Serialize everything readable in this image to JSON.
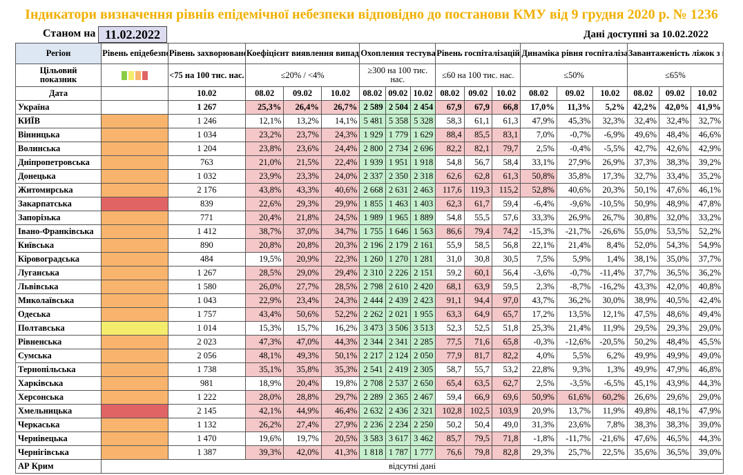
{
  "title": "Індикатори визначення рівнів епідемічної небезпеки відповідно до постанови КМУ від 9 грудня 2020 р. № 1236",
  "as_of_label": "Станом на",
  "as_of_date": "11.02.2022",
  "available": "Дані доступні за 10.02.2022",
  "colors": {
    "orange": "#f8b46c",
    "red": "#e06464",
    "yellow": "#f4ec6c",
    "pink": "#f4c7c8",
    "green": "#c6efce"
  },
  "headers": {
    "region": "Регіон",
    "level": "Рівень епідебезпеки",
    "incidence": "Рівень захворюваності",
    "detection": "Коефіцієнт виявлення випадків інфікування",
    "testing": "Охоплення тестуванням",
    "hospital": "Рівень госпіталізацій",
    "dynamics": "Динаміка рівня госпіталізацій",
    "beds": "Завантаженість ліжок з киснем"
  },
  "target": {
    "label": "Цільовий показник",
    "indicator_colors": [
      "#88cc44",
      "#f4ec6c",
      "#f8b46c",
      "#e06464"
    ],
    "incidence": "<75 на 100 тис. нас.",
    "detection": "≤20% / <4%",
    "testing": "≥300 на 100 тис. нас.",
    "hospital": "≤60 на 100 тис. нас.",
    "dynamics": "≤50%",
    "beds": "≤65%"
  },
  "date_label": "Дата",
  "dates": {
    "incidence": "10.02",
    "three": [
      "08.02",
      "09.02",
      "10.02"
    ]
  },
  "rows": [
    {
      "region": "Україна",
      "level": "none",
      "inc": "1 267",
      "det": [
        "25,3%",
        "26,4%",
        "26,7%"
      ],
      "tst": [
        "2 589",
        "2 504",
        "2 454"
      ],
      "hos": [
        "67,9",
        "67,9",
        "66,8"
      ],
      "dyn": [
        "17,0%",
        "11,3%",
        "5,2%"
      ],
      "bed": [
        "42,2%",
        "42,0%",
        "41,9%"
      ],
      "det_red": [
        1,
        1,
        1
      ],
      "hos_red": [
        1,
        1,
        1
      ],
      "dyn_red": [
        0,
        0,
        0
      ]
    },
    {
      "region": "КИЇВ",
      "level": "orange",
      "inc": "1 246",
      "det": [
        "12,1%",
        "13,2%",
        "14,1%"
      ],
      "tst": [
        "5 481",
        "5 358",
        "5 328"
      ],
      "hos": [
        "58,3",
        "61,1",
        "61,3"
      ],
      "dyn": [
        "47,9%",
        "45,3%",
        "32,3%"
      ],
      "bed": [
        "32,4%",
        "32,4%",
        "32,7%"
      ],
      "det_red": [
        0,
        0,
        0
      ],
      "hos_red": [
        0,
        0,
        0
      ],
      "dyn_red": [
        0,
        0,
        0
      ]
    },
    {
      "region": "Вінницька",
      "level": "orange",
      "inc": "1 034",
      "det": [
        "23,2%",
        "23,7%",
        "24,3%"
      ],
      "tst": [
        "1 929",
        "1 779",
        "1 629"
      ],
      "hos": [
        "88,4",
        "85,5",
        "83,1"
      ],
      "dyn": [
        "7,0%",
        "-0,7%",
        "-6,9%"
      ],
      "bed": [
        "49,6%",
        "48,4%",
        "46,6%"
      ],
      "det_red": [
        1,
        1,
        1
      ],
      "hos_red": [
        1,
        1,
        1
      ],
      "dyn_red": [
        0,
        0,
        0
      ]
    },
    {
      "region": "Волинська",
      "level": "orange",
      "inc": "1 204",
      "det": [
        "23,8%",
        "23,6%",
        "24,4%"
      ],
      "tst": [
        "2 800",
        "2 734",
        "2 696"
      ],
      "hos": [
        "82,2",
        "82,1",
        "79,7"
      ],
      "dyn": [
        "2,5%",
        "-0,4%",
        "-5,5%"
      ],
      "bed": [
        "42,7%",
        "42,6%",
        "42,9%"
      ],
      "det_red": [
        1,
        1,
        1
      ],
      "hos_red": [
        1,
        1,
        1
      ],
      "dyn_red": [
        0,
        0,
        0
      ]
    },
    {
      "region": "Дніпропетровська",
      "level": "orange",
      "inc": "763",
      "det": [
        "21,0%",
        "21,5%",
        "22,4%"
      ],
      "tst": [
        "1 939",
        "1 951",
        "1 918"
      ],
      "hos": [
        "54,8",
        "56,7",
        "58,4"
      ],
      "dyn": [
        "33,1%",
        "27,9%",
        "26,9%"
      ],
      "bed": [
        "37,3%",
        "38,3%",
        "39,2%"
      ],
      "det_red": [
        1,
        1,
        1
      ],
      "hos_red": [
        0,
        0,
        0
      ],
      "dyn_red": [
        0,
        0,
        0
      ]
    },
    {
      "region": "Донецька",
      "level": "orange",
      "inc": "1 032",
      "det": [
        "23,9%",
        "23,3%",
        "24,0%"
      ],
      "tst": [
        "2 337",
        "2 350",
        "2 318"
      ],
      "hos": [
        "62,6",
        "62,8",
        "61,3"
      ],
      "dyn": [
        "50,8%",
        "35,8%",
        "17,3%"
      ],
      "bed": [
        "32,7%",
        "33,4%",
        "35,2%"
      ],
      "det_red": [
        1,
        1,
        1
      ],
      "hos_red": [
        1,
        1,
        1
      ],
      "dyn_red": [
        1,
        0,
        0
      ]
    },
    {
      "region": "Житомирська",
      "level": "orange",
      "inc": "2 176",
      "det": [
        "43,8%",
        "43,3%",
        "40,6%"
      ],
      "tst": [
        "2 668",
        "2 631",
        "2 463"
      ],
      "hos": [
        "117,6",
        "119,3",
        "115,2"
      ],
      "dyn": [
        "52,8%",
        "40,6%",
        "20,3%"
      ],
      "bed": [
        "50,1%",
        "47,6%",
        "46,1%"
      ],
      "det_red": [
        1,
        1,
        1
      ],
      "hos_red": [
        1,
        1,
        1
      ],
      "dyn_red": [
        1,
        0,
        0
      ]
    },
    {
      "region": "Закарпатська",
      "level": "red",
      "inc": "839",
      "det": [
        "22,6%",
        "29,3%",
        "29,9%"
      ],
      "tst": [
        "1 855",
        "1 463",
        "1 403"
      ],
      "hos": [
        "62,3",
        "61,7",
        "59,4"
      ],
      "dyn": [
        "-6,4%",
        "-9,6%",
        "-10,5%"
      ],
      "bed": [
        "50,9%",
        "48,9%",
        "47,8%"
      ],
      "det_red": [
        1,
        1,
        1
      ],
      "hos_red": [
        1,
        1,
        0
      ],
      "dyn_red": [
        0,
        0,
        0
      ]
    },
    {
      "region": "Запорізька",
      "level": "orange",
      "inc": "771",
      "det": [
        "20,4%",
        "21,8%",
        "24,5%"
      ],
      "tst": [
        "1 989",
        "1 965",
        "1 889"
      ],
      "hos": [
        "54,8",
        "55,5",
        "57,6"
      ],
      "dyn": [
        "33,3%",
        "26,9%",
        "26,7%"
      ],
      "bed": [
        "30,8%",
        "32,0%",
        "33,2%"
      ],
      "det_red": [
        1,
        1,
        1
      ],
      "hos_red": [
        0,
        0,
        0
      ],
      "dyn_red": [
        0,
        0,
        0
      ]
    },
    {
      "region": "Івано-Франківська",
      "level": "orange",
      "inc": "1 412",
      "det": [
        "38,7%",
        "37,0%",
        "34,7%"
      ],
      "tst": [
        "1 755",
        "1 646",
        "1 563"
      ],
      "hos": [
        "86,6",
        "79,4",
        "74,2"
      ],
      "dyn": [
        "-15,3%",
        "-21,7%",
        "-26,6%"
      ],
      "bed": [
        "55,0%",
        "53,5%",
        "52,2%"
      ],
      "det_red": [
        1,
        1,
        1
      ],
      "hos_red": [
        1,
        1,
        1
      ],
      "dyn_red": [
        0,
        0,
        0
      ]
    },
    {
      "region": "Київська",
      "level": "orange",
      "inc": "890",
      "det": [
        "20,8%",
        "20,8%",
        "20,3%"
      ],
      "tst": [
        "2 196",
        "2 179",
        "2 161"
      ],
      "hos": [
        "55,9",
        "58,5",
        "56,8"
      ],
      "dyn": [
        "22,1%",
        "21,4%",
        "8,4%"
      ],
      "bed": [
        "52,0%",
        "54,3%",
        "54,9%"
      ],
      "det_red": [
        1,
        1,
        1
      ],
      "hos_red": [
        0,
        0,
        0
      ],
      "dyn_red": [
        0,
        0,
        0
      ]
    },
    {
      "region": "Кіровоградська",
      "level": "orange",
      "inc": "484",
      "det": [
        "19,5%",
        "20,9%",
        "22,3%"
      ],
      "tst": [
        "1 260",
        "1 270",
        "1 281"
      ],
      "hos": [
        "31,0",
        "30,8",
        "30,5"
      ],
      "dyn": [
        "7,5%",
        "5,9%",
        "1,4%"
      ],
      "bed": [
        "38,1%",
        "35,0%",
        "37,7%"
      ],
      "det_red": [
        0,
        1,
        1
      ],
      "hos_red": [
        0,
        0,
        0
      ],
      "dyn_red": [
        0,
        0,
        0
      ]
    },
    {
      "region": "Луганська",
      "level": "orange",
      "inc": "1 267",
      "det": [
        "28,5%",
        "29,0%",
        "29,4%"
      ],
      "tst": [
        "2 310",
        "2 226",
        "2 151"
      ],
      "hos": [
        "59,2",
        "60,1",
        "56,4"
      ],
      "dyn": [
        "-3,6%",
        "-0,7%",
        "-11,4%"
      ],
      "bed": [
        "37,7%",
        "36,5%",
        "36,2%"
      ],
      "det_red": [
        1,
        1,
        1
      ],
      "hos_red": [
        0,
        1,
        0
      ],
      "dyn_red": [
        0,
        0,
        0
      ]
    },
    {
      "region": "Львівська",
      "level": "orange",
      "inc": "1 580",
      "det": [
        "26,0%",
        "27,7%",
        "28,5%"
      ],
      "tst": [
        "2 798",
        "2 610",
        "2 420"
      ],
      "hos": [
        "68,1",
        "63,9",
        "59,5"
      ],
      "dyn": [
        "2,3%",
        "-8,7%",
        "-16,2%"
      ],
      "bed": [
        "43,3%",
        "42,0%",
        "40,8%"
      ],
      "det_red": [
        1,
        1,
        1
      ],
      "hos_red": [
        1,
        1,
        0
      ],
      "dyn_red": [
        0,
        0,
        0
      ]
    },
    {
      "region": "Миколаївська",
      "level": "orange",
      "inc": "1 043",
      "det": [
        "22,9%",
        "23,4%",
        "24,3%"
      ],
      "tst": [
        "2 444",
        "2 439",
        "2 423"
      ],
      "hos": [
        "91,1",
        "94,4",
        "97,0"
      ],
      "dyn": [
        "43,7%",
        "36,2%",
        "30,0%"
      ],
      "bed": [
        "38,9%",
        "40,5%",
        "42,4%"
      ],
      "det_red": [
        1,
        1,
        1
      ],
      "hos_red": [
        1,
        1,
        1
      ],
      "dyn_red": [
        0,
        0,
        0
      ]
    },
    {
      "region": "Одеська",
      "level": "orange",
      "inc": "1 757",
      "det": [
        "43,4%",
        "50,6%",
        "52,2%"
      ],
      "tst": [
        "2 262",
        "2 021",
        "1 955"
      ],
      "hos": [
        "63,3",
        "64,9",
        "65,7"
      ],
      "dyn": [
        "17,2%",
        "13,5%",
        "12,1%"
      ],
      "bed": [
        "47,5%",
        "48,6%",
        "49,4%"
      ],
      "det_red": [
        1,
        1,
        1
      ],
      "hos_red": [
        1,
        1,
        1
      ],
      "dyn_red": [
        0,
        0,
        0
      ]
    },
    {
      "region": "Полтавська",
      "level": "yellow",
      "inc": "1 014",
      "det": [
        "15,3%",
        "15,7%",
        "16,2%"
      ],
      "tst": [
        "3 473",
        "3 506",
        "3 513"
      ],
      "hos": [
        "52,3",
        "52,5",
        "51,8"
      ],
      "dyn": [
        "25,3%",
        "21,4%",
        "11,9%"
      ],
      "bed": [
        "29,5%",
        "29,3%",
        "29,0%"
      ],
      "det_red": [
        0,
        0,
        0
      ],
      "hos_red": [
        0,
        0,
        0
      ],
      "dyn_red": [
        0,
        0,
        0
      ]
    },
    {
      "region": "Рівненська",
      "level": "orange",
      "inc": "2 023",
      "det": [
        "47,3%",
        "47,0%",
        "44,3%"
      ],
      "tst": [
        "2 344",
        "2 341",
        "2 285"
      ],
      "hos": [
        "77,5",
        "71,6",
        "65,8"
      ],
      "dyn": [
        "-0,3%",
        "-12,6%",
        "-20,5%"
      ],
      "bed": [
        "50,2%",
        "48,4%",
        "45,5%"
      ],
      "det_red": [
        1,
        1,
        1
      ],
      "hos_red": [
        1,
        1,
        1
      ],
      "dyn_red": [
        0,
        0,
        0
      ]
    },
    {
      "region": "Сумська",
      "level": "orange",
      "inc": "2 056",
      "det": [
        "48,1%",
        "49,3%",
        "50,1%"
      ],
      "tst": [
        "2 217",
        "2 124",
        "2 050"
      ],
      "hos": [
        "77,9",
        "81,7",
        "82,2"
      ],
      "dyn": [
        "4,0%",
        "5,5%",
        "6,2%"
      ],
      "bed": [
        "49,9%",
        "49,9%",
        "49,0%"
      ],
      "det_red": [
        1,
        1,
        1
      ],
      "hos_red": [
        1,
        1,
        1
      ],
      "dyn_red": [
        0,
        0,
        0
      ]
    },
    {
      "region": "Тернопільська",
      "level": "orange",
      "inc": "1 738",
      "det": [
        "35,1%",
        "35,8%",
        "35,3%"
      ],
      "tst": [
        "2 541",
        "2 419",
        "2 305"
      ],
      "hos": [
        "58,7",
        "55,7",
        "53,2"
      ],
      "dyn": [
        "22,8%",
        "9,3%",
        "1,3%"
      ],
      "bed": [
        "49,9%",
        "47,9%",
        "46,8%"
      ],
      "det_red": [
        1,
        1,
        1
      ],
      "hos_red": [
        0,
        0,
        0
      ],
      "dyn_red": [
        0,
        0,
        0
      ]
    },
    {
      "region": "Харківська",
      "level": "orange",
      "inc": "981",
      "det": [
        "18,9%",
        "20,4%",
        "19,8%"
      ],
      "tst": [
        "2 708",
        "2 537",
        "2 650"
      ],
      "hos": [
        "65,4",
        "63,5",
        "62,7"
      ],
      "dyn": [
        "2,5%",
        "-3,5%",
        "-6,5%"
      ],
      "bed": [
        "45,1%",
        "43,9%",
        "44,3%"
      ],
      "det_red": [
        0,
        1,
        0
      ],
      "hos_red": [
        1,
        1,
        1
      ],
      "dyn_red": [
        0,
        0,
        0
      ]
    },
    {
      "region": "Херсонська",
      "level": "orange",
      "inc": "1 222",
      "det": [
        "28,0%",
        "28,8%",
        "29,7%"
      ],
      "tst": [
        "2 289",
        "2 365",
        "2 467"
      ],
      "hos": [
        "59,4",
        "66,9",
        "69,6"
      ],
      "dyn": [
        "50,9%",
        "61,6%",
        "60,2%"
      ],
      "bed": [
        "26,6%",
        "29,6%",
        "29,0%"
      ],
      "det_red": [
        1,
        1,
        1
      ],
      "hos_red": [
        0,
        1,
        1
      ],
      "dyn_red": [
        1,
        1,
        1
      ]
    },
    {
      "region": "Хмельницька",
      "level": "red",
      "inc": "2 145",
      "det": [
        "42,1%",
        "44,9%",
        "46,4%"
      ],
      "tst": [
        "2 632",
        "2 436",
        "2 321"
      ],
      "hos": [
        "102,8",
        "102,5",
        "103,9"
      ],
      "dyn": [
        "20,9%",
        "13,7%",
        "11,9%"
      ],
      "bed": [
        "49,8%",
        "48,1%",
        "47,9%"
      ],
      "det_red": [
        1,
        1,
        1
      ],
      "hos_red": [
        1,
        1,
        1
      ],
      "dyn_red": [
        0,
        0,
        0
      ]
    },
    {
      "region": "Черкаська",
      "level": "orange",
      "inc": "1 132",
      "det": [
        "26,2%",
        "27,4%",
        "27,9%"
      ],
      "tst": [
        "2 236",
        "2 234",
        "2 250"
      ],
      "hos": [
        "50,2",
        "50,4",
        "49,0"
      ],
      "dyn": [
        "31,3%",
        "23,6%",
        "7,8%"
      ],
      "bed": [
        "38,3%",
        "38,3%",
        "39,0%"
      ],
      "det_red": [
        1,
        1,
        1
      ],
      "hos_red": [
        0,
        0,
        0
      ],
      "dyn_red": [
        0,
        0,
        0
      ]
    },
    {
      "region": "Чернівецька",
      "level": "orange",
      "inc": "1 470",
      "det": [
        "19,6%",
        "19,7%",
        "20,5%"
      ],
      "tst": [
        "3 583",
        "3 617",
        "3 462"
      ],
      "hos": [
        "85,7",
        "79,5",
        "71,8"
      ],
      "dyn": [
        "-1,8%",
        "-11,7%",
        "-21,6%"
      ],
      "bed": [
        "47,6%",
        "46,5%",
        "44,3%"
      ],
      "det_red": [
        0,
        0,
        1
      ],
      "hos_red": [
        1,
        1,
        1
      ],
      "dyn_red": [
        0,
        0,
        0
      ]
    },
    {
      "region": "Чернігівська",
      "level": "orange",
      "inc": "1 387",
      "det": [
        "39,3%",
        "42,0%",
        "41,3%"
      ],
      "tst": [
        "1 818",
        "1 787",
        "1 777"
      ],
      "hos": [
        "76,6",
        "79,8",
        "82,8"
      ],
      "dyn": [
        "29,3%",
        "25,7%",
        "22,5%"
      ],
      "bed": [
        "35,6%",
        "36,5%",
        "39,0%"
      ],
      "det_red": [
        1,
        1,
        1
      ],
      "hos_red": [
        1,
        1,
        1
      ],
      "dyn_red": [
        0,
        0,
        0
      ]
    }
  ],
  "crimea": {
    "region": "АР Крим",
    "note": "відсутні дані"
  }
}
